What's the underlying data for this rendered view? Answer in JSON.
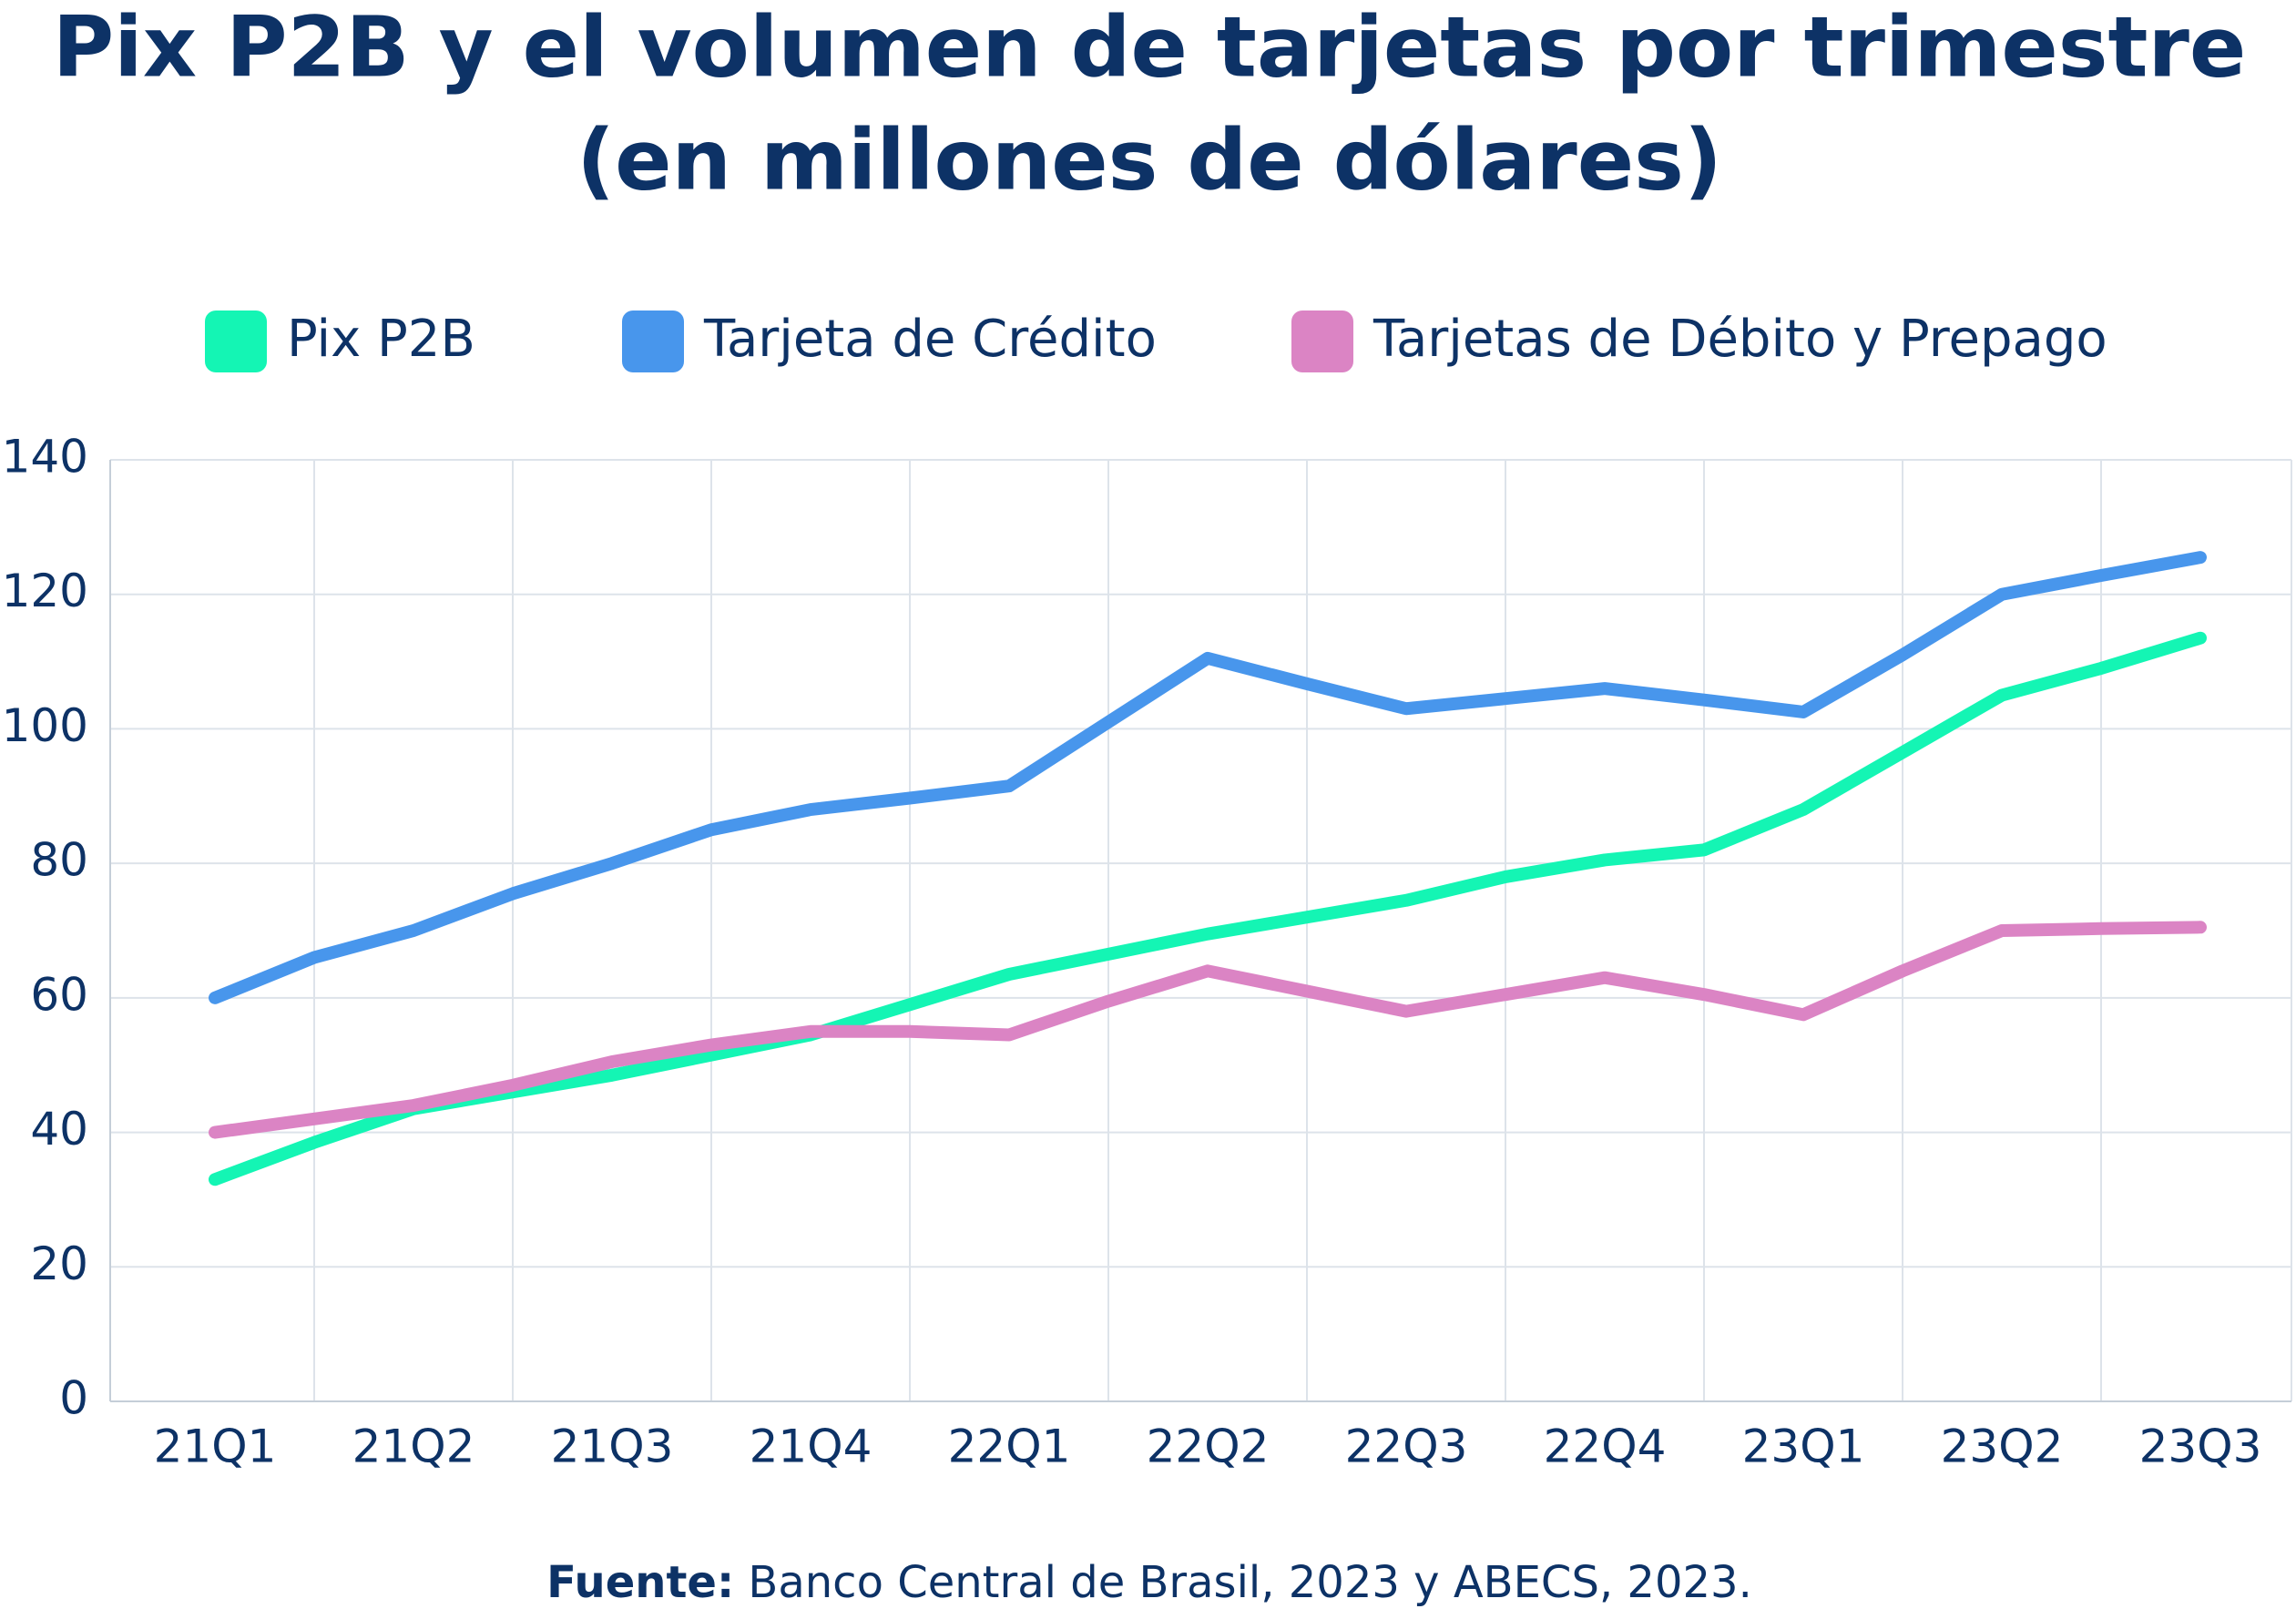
{
  "chart_data": {
    "type": "line",
    "title": [
      "Pix P2B y el volumen de tarjetas por trimestre",
      "(en millones de dólares)"
    ],
    "categories": [
      "21Q1",
      null,
      "21Q2",
      null,
      "21Q3",
      null,
      "21Q4",
      null,
      "22Q1",
      null,
      "22Q2",
      null,
      "22Q3",
      null,
      "22Q4",
      null,
      "23Q1",
      null,
      "23Q2",
      null,
      "23Q3"
    ],
    "series": [
      {
        "name": "Pix P2B",
        "color": "#14f5b4",
        "values": [
          33,
          38.5,
          43.5,
          46,
          48.5,
          51.5,
          54.5,
          59,
          63.5,
          66.5,
          69.5,
          72,
          74.5,
          78,
          80.5,
          82,
          88,
          96.5,
          105,
          109,
          113.5
        ]
      },
      {
        "name": "Tarjeta de Crédito",
        "color": "#4896ec",
        "values": [
          60,
          66,
          70,
          75.5,
          80,
          85,
          88,
          89.7,
          91.5,
          101,
          110.5,
          106.7,
          103,
          104.5,
          106,
          104.3,
          102.5,
          111,
          120,
          122.8,
          125.5
        ]
      },
      {
        "name": "Tarjetas de Débito y Prepago",
        "color": "#db84c4",
        "values": [
          40,
          42,
          44,
          47,
          50.5,
          53,
          55,
          55,
          54.5,
          59.5,
          64,
          61,
          58,
          60.5,
          63,
          60.5,
          57.5,
          64,
          70,
          70.3,
          70.5
        ]
      }
    ],
    "ylim": [
      0,
      140
    ],
    "yticks": [
      0,
      20,
      40,
      60,
      80,
      100,
      120,
      140
    ],
    "grid": true,
    "legend": "top",
    "source_label": "Fuente:",
    "source": "Banco Central de Brasil, 2023 y ABECS, 2023."
  }
}
